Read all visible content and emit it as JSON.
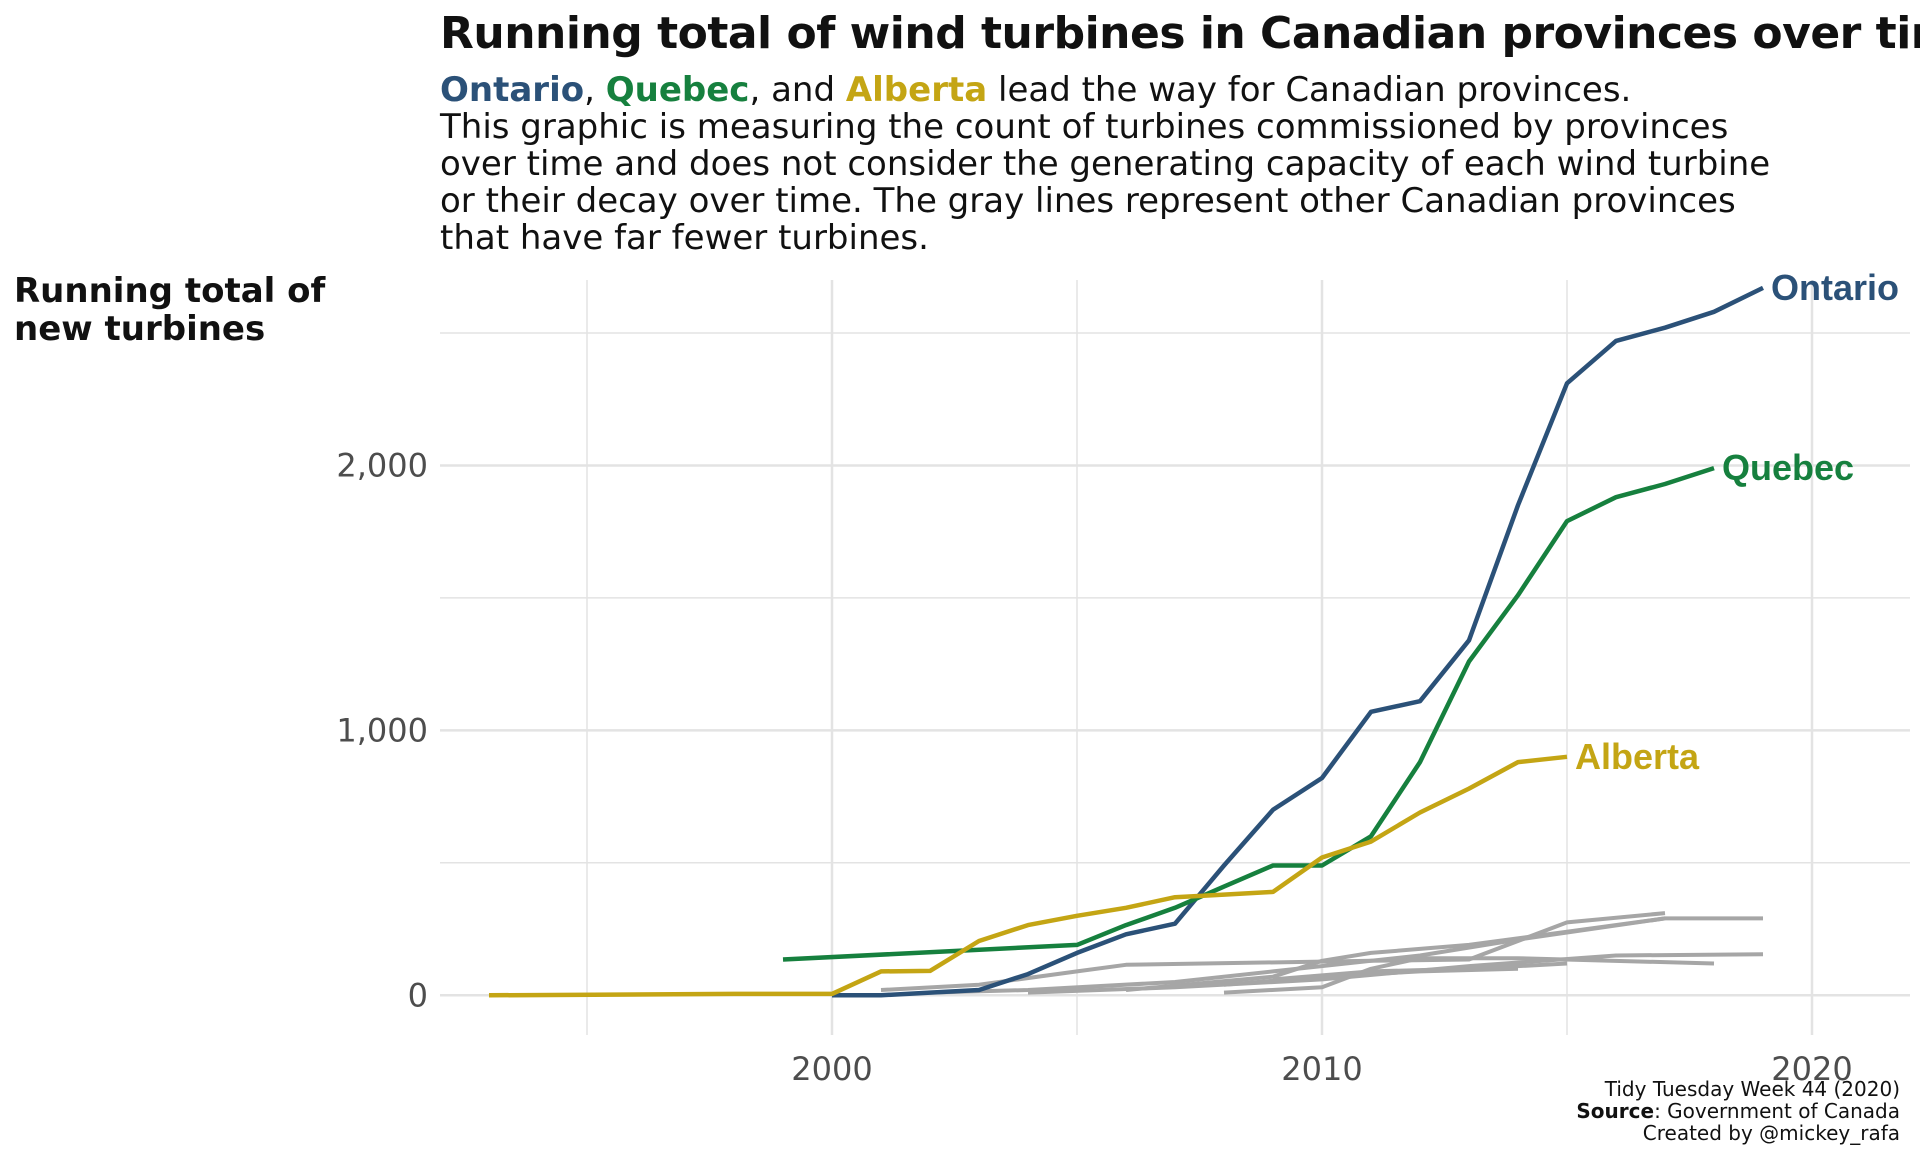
{
  "header": {
    "title": "Running total of wind turbines in Canadian provinces over time",
    "subtitle_highlight_1": "Ontario",
    "subtitle_sep_1": ", ",
    "subtitle_highlight_2": "Quebec",
    "subtitle_sep_2": ", and ",
    "subtitle_highlight_3": "Alberta",
    "subtitle_rest_1": " lead the way for Canadian provinces.",
    "subtitle_line_2": "This graphic is measuring the count of turbines commissioned by provinces",
    "subtitle_line_3": "over time and does not consider the generating capacity of each wind turbine",
    "subtitle_line_4": "or their decay over time. The gray lines represent other Canadian provinces",
    "subtitle_line_5": "that have far fewer turbines."
  },
  "axis": {
    "ylabel_line_1": "Running total of",
    "ylabel_line_2": "new turbines"
  },
  "caption": {
    "line_1": "Tidy Tuesday Week 44 (2020)",
    "line_2_bold": "Source",
    "line_2_rest": ": Government of Canada",
    "line_3": "Created by @mickey_rafa"
  },
  "colors": {
    "ontario": "#2b5178",
    "quebec": "#16803e",
    "alberta": "#c4a514",
    "other": "#a6a6a6",
    "grid": "#e3e3e3"
  },
  "chart_data": {
    "type": "line",
    "title": "Running total of wind turbines in Canadian provinces over time",
    "xlabel": "",
    "ylabel": "Running total of new turbines",
    "xlim": [
      1992,
      2022
    ],
    "ylim": [
      -150,
      2700
    ],
    "x_ticks": [
      2000,
      2010,
      2020
    ],
    "x_tick_labels": [
      "2000",
      "2010",
      "2020"
    ],
    "y_ticks": [
      0,
      1000,
      2000
    ],
    "y_tick_labels": [
      "0",
      "1,000",
      "2,000"
    ],
    "grid": true,
    "legend": "direct labels at line ends",
    "series": [
      {
        "name": "Ontario",
        "color": "#2b5178",
        "highlight": true,
        "x": [
          2000,
          2001,
          2002,
          2003,
          2004,
          2005,
          2006,
          2007,
          2008,
          2009,
          2010,
          2011,
          2012,
          2013,
          2014,
          2015,
          2016,
          2017,
          2018,
          2019
        ],
        "y": [
          0,
          0,
          10,
          20,
          80,
          160,
          230,
          270,
          490,
          700,
          820,
          1070,
          1110,
          1340,
          1850,
          2310,
          2470,
          2520,
          2580,
          2670
        ]
      },
      {
        "name": "Quebec",
        "color": "#16803e",
        "highlight": true,
        "x": [
          1999,
          2005,
          2006,
          2007,
          2008,
          2009,
          2010,
          2011,
          2012,
          2013,
          2014,
          2015,
          2016,
          2017,
          2018
        ],
        "y": [
          135,
          190,
          265,
          330,
          410,
          490,
          490,
          600,
          880,
          1260,
          1510,
          1790,
          1880,
          1930,
          1990
        ]
      },
      {
        "name": "Alberta",
        "color": "#c4a514",
        "highlight": true,
        "x": [
          1993,
          1998,
          2000,
          2001,
          2002,
          2003,
          2004,
          2005,
          2006,
          2007,
          2008,
          2009,
          2010,
          2011,
          2012,
          2013,
          2014,
          2015
        ],
        "y": [
          0,
          5,
          5,
          90,
          92,
          205,
          265,
          300,
          330,
          370,
          380,
          390,
          520,
          580,
          690,
          780,
          880,
          900
        ]
      },
      {
        "color": "#a6a6a6",
        "highlight": false,
        "x": [
          2001,
          2003,
          2005,
          2006,
          2011,
          2013,
          2015,
          2017
        ],
        "y": [
          20,
          40,
          90,
          115,
          130,
          135,
          275,
          310
        ]
      },
      {
        "color": "#a6a6a6",
        "highlight": false,
        "x": [
          2002,
          2004,
          2007,
          2009,
          2012,
          2014,
          2017,
          2019
        ],
        "y": [
          10,
          20,
          50,
          90,
          150,
          210,
          290,
          290
        ]
      },
      {
        "color": "#a6a6a6",
        "highlight": false,
        "x": [
          2004,
          2007,
          2010,
          2013,
          2016,
          2019
        ],
        "y": [
          10,
          30,
          60,
          110,
          150,
          155
        ]
      },
      {
        "color": "#a6a6a6",
        "highlight": false,
        "x": [
          2008,
          2010,
          2011,
          2012,
          2014,
          2018
        ],
        "y": [
          10,
          30,
          100,
          140,
          140,
          120
        ]
      },
      {
        "color": "#a6a6a6",
        "highlight": false,
        "x": [
          2006,
          2009,
          2010,
          2011,
          2012,
          2013,
          2015,
          2017
        ],
        "y": [
          20,
          70,
          130,
          160,
          175,
          190,
          240,
          290
        ]
      },
      {
        "color": "#a6a6a6",
        "highlight": false,
        "x": [
          2009,
          2011,
          2013,
          2015
        ],
        "y": [
          60,
          90,
          100,
          120
        ]
      },
      {
        "color": "#a6a6a6",
        "highlight": false,
        "x": [
          2008,
          2010,
          2012,
          2014
        ],
        "y": [
          40,
          70,
          90,
          100
        ]
      }
    ]
  }
}
